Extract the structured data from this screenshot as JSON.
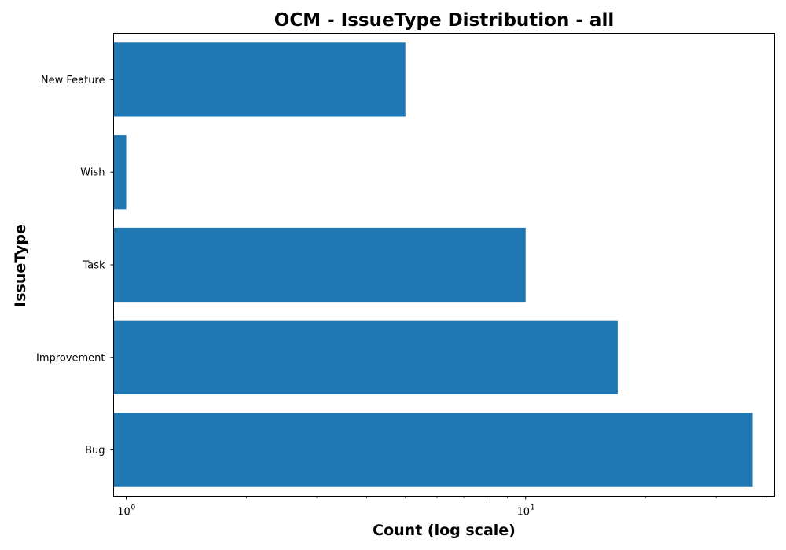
{
  "chart_data": {
    "type": "bar",
    "orientation": "horizontal",
    "title": "OCM - IssueType Distribution - all",
    "xlabel": "Count (log scale)",
    "ylabel": "IssueType",
    "xscale": "log",
    "xlim": [
      0.93,
      42
    ],
    "categories": [
      "Bug",
      "Improvement",
      "Task",
      "Wish",
      "New Feature"
    ],
    "values": [
      37,
      17,
      10,
      1,
      5
    ],
    "x_tick_labels": [
      {
        "value": 1,
        "label": "10",
        "exponent": "0"
      },
      {
        "value": 10,
        "label": "10",
        "exponent": "1"
      }
    ],
    "minor_ticks": [
      2,
      3,
      4,
      5,
      6,
      7,
      8,
      9,
      20,
      30,
      40
    ],
    "grid": false,
    "colors": {
      "bar": "#1f77b4",
      "axes": "#000000",
      "background": "#ffffff"
    }
  }
}
